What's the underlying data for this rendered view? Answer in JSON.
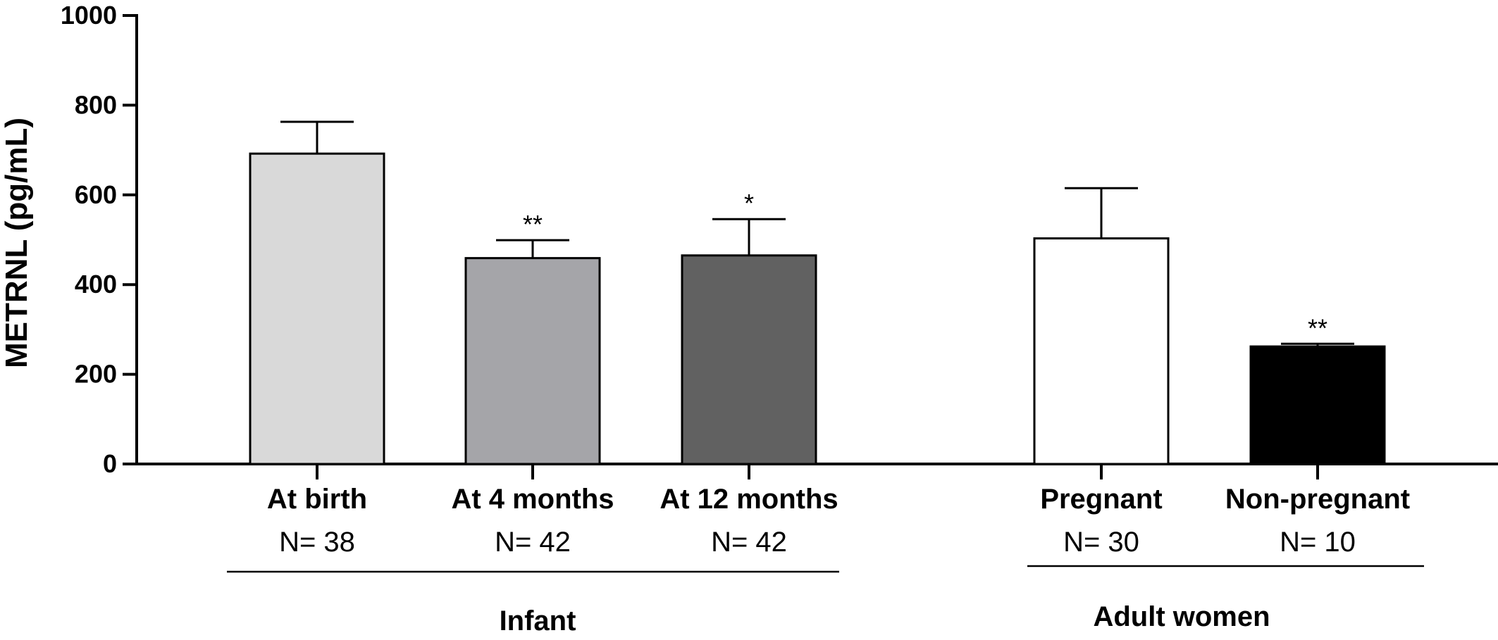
{
  "chart_data": {
    "type": "bar",
    "title": "",
    "xlabel": "",
    "ylabel": "METRNL (pg/mL)",
    "ylim": [
      0,
      1000
    ],
    "yticks": [
      "0",
      "200",
      "400",
      "600",
      "800",
      "1000"
    ],
    "categories": [
      "At birth",
      "At 4 months",
      "At 12 months",
      "Pregnant",
      "Non-pregnant"
    ],
    "n_labels": [
      "N= 38",
      "N= 42",
      "N= 42",
      "N= 30",
      "N= 10"
    ],
    "values": [
      692,
      459,
      465,
      503,
      262
    ],
    "errors": [
      71,
      40,
      81,
      112,
      6
    ],
    "significance": [
      "",
      "**",
      "*",
      "",
      "**"
    ],
    "colors": [
      "#d9d9d9",
      "#a5a5a9",
      "#616161",
      "#ffffff",
      "#000000"
    ],
    "groups": [
      {
        "label": "Infant",
        "members": [
          0,
          1,
          2
        ]
      },
      {
        "label": "Adult women",
        "members": [
          3,
          4
        ]
      }
    ]
  }
}
